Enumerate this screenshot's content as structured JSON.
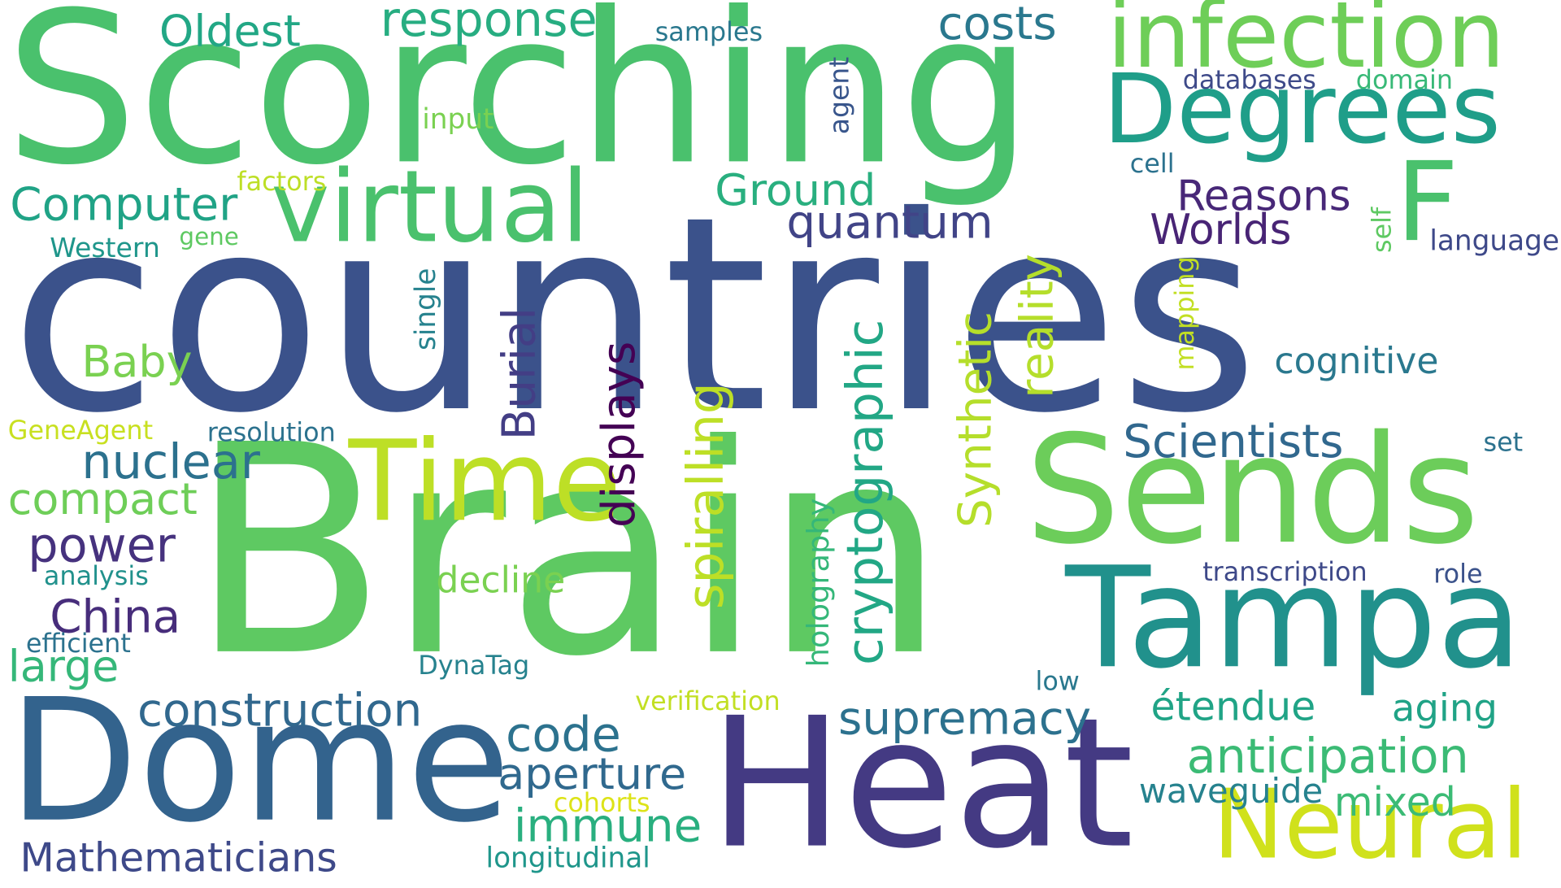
{
  "wordcloud": {
    "background": "#ffffff",
    "words": [
      {
        "text": "countries",
        "color": "#3b528b"
      },
      {
        "text": "Brain",
        "color": "#5ec962"
      },
      {
        "text": "Scorching",
        "color": "#4ac16d"
      },
      {
        "text": "Heat",
        "color": "#443a83"
      },
      {
        "text": "Dome",
        "color": "#33638d"
      },
      {
        "text": "Tampa",
        "color": "#21918c"
      },
      {
        "text": "Sends",
        "color": "#6ccd5a"
      },
      {
        "text": "infection",
        "color": "#6ece58"
      },
      {
        "text": "Degrees",
        "color": "#1f9e89"
      },
      {
        "text": "virtual",
        "color": "#4ac16d"
      },
      {
        "text": "F",
        "color": "#4ac16d"
      },
      {
        "text": "Time",
        "color": "#bddf26"
      },
      {
        "text": "Neural",
        "color": "#d0e11c"
      },
      {
        "text": "response",
        "color": "#27ad81"
      },
      {
        "text": "costs",
        "color": "#2a788e"
      },
      {
        "text": "Oldest",
        "color": "#22a785"
      },
      {
        "text": "samples",
        "color": "#2a788e"
      },
      {
        "text": "agent",
        "color": "#39568c"
      },
      {
        "text": "databases",
        "color": "#3e4a89"
      },
      {
        "text": "domain",
        "color": "#38b977"
      },
      {
        "text": "input",
        "color": "#7ad151"
      },
      {
        "text": "cell",
        "color": "#2c728e"
      },
      {
        "text": "Computer",
        "color": "#20a386"
      },
      {
        "text": "factors",
        "color": "#bddf26"
      },
      {
        "text": "Ground",
        "color": "#29af7f"
      },
      {
        "text": "Reasons",
        "color": "#482878"
      },
      {
        "text": "Worlds",
        "color": "#482475"
      },
      {
        "text": "quantum",
        "color": "#414487"
      },
      {
        "text": "self",
        "color": "#5ec962"
      },
      {
        "text": "language",
        "color": "#3e4989"
      },
      {
        "text": "Western",
        "color": "#1f968b"
      },
      {
        "text": "gene",
        "color": "#5ec962"
      },
      {
        "text": "reality",
        "color": "#b5de2b"
      },
      {
        "text": "mapping",
        "color": "#c2df23"
      },
      {
        "text": "single",
        "color": "#26828e"
      },
      {
        "text": "Baby",
        "color": "#7ad151"
      },
      {
        "text": "Burial",
        "color": "#433e85"
      },
      {
        "text": "displays",
        "color": "#440154"
      },
      {
        "text": "spiralling",
        "color": "#bddf26"
      },
      {
        "text": "cryptographic",
        "color": "#22a785"
      },
      {
        "text": "Synthetic",
        "color": "#b5de2b"
      },
      {
        "text": "cognitive",
        "color": "#2a788e"
      },
      {
        "text": "GeneAgent",
        "color": "#c8e020"
      },
      {
        "text": "resolution",
        "color": "#2c728e"
      },
      {
        "text": "Scientists",
        "color": "#31688e"
      },
      {
        "text": "set",
        "color": "#2c728e"
      },
      {
        "text": "nuclear",
        "color": "#2c718e"
      },
      {
        "text": "compact",
        "color": "#6ece58"
      },
      {
        "text": "holography",
        "color": "#35b779"
      },
      {
        "text": "power",
        "color": "#46327e"
      },
      {
        "text": "analysis",
        "color": "#21918c"
      },
      {
        "text": "decline",
        "color": "#7ad151"
      },
      {
        "text": "transcription",
        "color": "#3e4989"
      },
      {
        "text": "role",
        "color": "#3b528b"
      },
      {
        "text": "China",
        "color": "#472d7b"
      },
      {
        "text": "efficient",
        "color": "#2c728e"
      },
      {
        "text": "large",
        "color": "#35b779"
      },
      {
        "text": "DynaTag",
        "color": "#26828e"
      },
      {
        "text": "low",
        "color": "#2a788e"
      },
      {
        "text": "construction",
        "color": "#31688e"
      },
      {
        "text": "verification",
        "color": "#c2df23"
      },
      {
        "text": "supremacy",
        "color": "#2c718e"
      },
      {
        "text": "étendue",
        "color": "#20a486"
      },
      {
        "text": "aging",
        "color": "#20a386"
      },
      {
        "text": "code",
        "color": "#2c728e"
      },
      {
        "text": "anticipation",
        "color": "#3bbb75"
      },
      {
        "text": "aperture",
        "color": "#30698e"
      },
      {
        "text": "cohorts",
        "color": "#dde318"
      },
      {
        "text": "waveguide",
        "color": "#26828e"
      },
      {
        "text": "mixed",
        "color": "#3bbb75"
      },
      {
        "text": "immune",
        "color": "#29af7f"
      },
      {
        "text": "Mathematicians",
        "color": "#3e4989"
      },
      {
        "text": "longitudinal",
        "color": "#1f968b"
      }
    ]
  }
}
